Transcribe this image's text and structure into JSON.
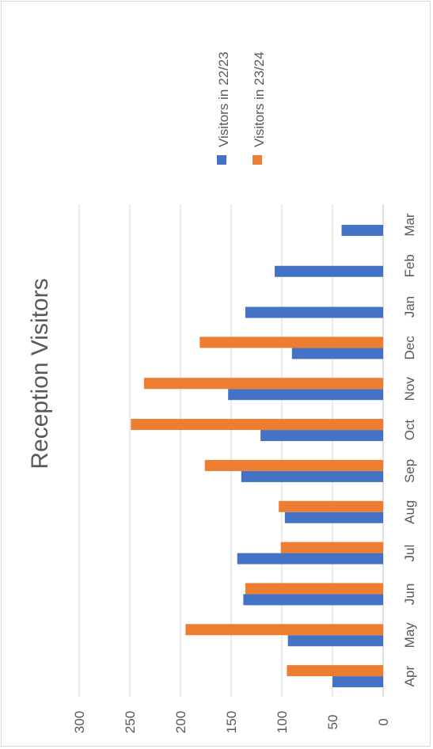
{
  "chart_data": {
    "type": "bar",
    "orientation": "horizontal (page rotated 90° counter-clockwise)",
    "title": "Reception Visitors",
    "categories": [
      "Apr",
      "May",
      "Jun",
      "Jul",
      "Aug",
      "Sep",
      "Oct",
      "Nov",
      "Dec",
      "Jan",
      "Feb",
      "Mar"
    ],
    "series": [
      {
        "name": "Visitors in 22/23",
        "color": "#4472c4",
        "values": [
          50,
          94,
          138,
          144,
          97,
          140,
          121,
          153,
          90,
          136,
          107,
          41
        ]
      },
      {
        "name": "Visitors in 23/24",
        "color": "#ed7d31",
        "values": [
          95,
          195,
          136,
          101,
          103,
          176,
          249,
          236,
          181,
          null,
          null,
          null
        ]
      }
    ],
    "value_axis": {
      "min": 0,
      "max": 300,
      "step": 50,
      "tick_labels": [
        "0",
        "50",
        "100",
        "150",
        "200",
        "250",
        "300"
      ]
    },
    "grid": true,
    "legend": "top-right"
  }
}
